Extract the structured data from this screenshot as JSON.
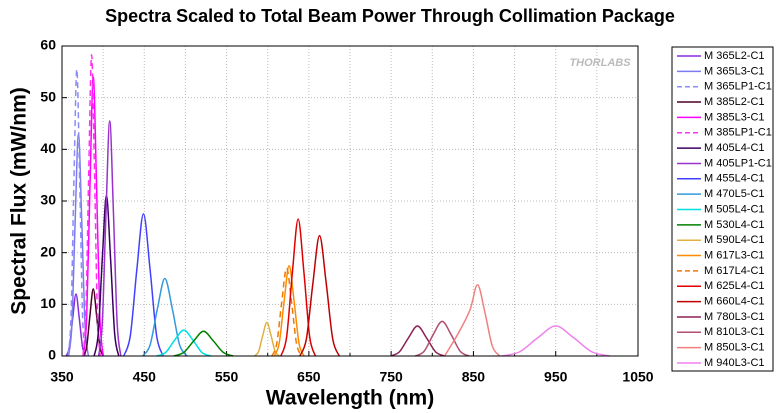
{
  "chart_data": {
    "type": "line",
    "title": "Spectra Scaled to Total Beam Power Through Collimation Package",
    "x_label": "Wavelength (nm)",
    "y_label": "Spectral Flux (mW/nm)",
    "watermark": "THORLABS",
    "xlim": [
      350,
      1050
    ],
    "xticks": [
      350,
      450,
      550,
      650,
      750,
      850,
      950,
      1050
    ],
    "xminor": [
      400,
      500,
      600,
      700,
      800,
      900,
      1000
    ],
    "ylim": [
      0,
      60
    ],
    "yticks": [
      0,
      10,
      20,
      30,
      40,
      50,
      60
    ],
    "grid": true,
    "legend": "right",
    "series": [
      {
        "name": "M 365L2-C1",
        "color": "#8a2be2",
        "dashed": false,
        "x": [
          355,
          359,
          363,
          367,
          371,
          375,
          379
        ],
        "values": [
          0,
          1.7,
          7.3,
          12,
          7.3,
          1.7,
          0
        ]
      },
      {
        "name": "M 365L3-C1",
        "color": "#7b7bf0",
        "dashed": false,
        "x": [
          358,
          362,
          366,
          370,
          374,
          378,
          382
        ],
        "values": [
          0,
          6,
          26.2,
          43,
          26.2,
          6,
          0
        ]
      },
      {
        "name": "M 365LP1-C1",
        "color": "#8c8cf5",
        "dashed": true,
        "x": [
          357.5,
          361,
          364.5,
          368,
          371.5,
          375,
          378.5
        ],
        "values": [
          0,
          7.8,
          33.9,
          55.5,
          33.9,
          7.8,
          0
        ]
      },
      {
        "name": "M 385L2-C1",
        "color": "#4b0026",
        "dashed": false,
        "x": [
          376,
          380,
          384,
          388,
          392,
          396,
          400
        ],
        "values": [
          0,
          1.8,
          7.9,
          13,
          7.9,
          1.8,
          0
        ]
      },
      {
        "name": "M 385L3-C1",
        "color": "#ff00ff",
        "dashed": false,
        "x": [
          376,
          380,
          384,
          388,
          392,
          396,
          400
        ],
        "values": [
          0,
          7.6,
          32.9,
          54,
          32.9,
          7.6,
          0
        ]
      },
      {
        "name": "M 385LP1-C1",
        "color": "#ff33ee",
        "dashed": true,
        "x": [
          375.5,
          379,
          382.5,
          386,
          389.5,
          393,
          396.5
        ],
        "values": [
          0,
          8.2,
          35.6,
          58.3,
          35.6,
          8.2,
          0
        ]
      },
      {
        "name": "M 405L4-C1",
        "color": "#3a0060",
        "dashed": false,
        "x": [
          389,
          394,
          399,
          404,
          409,
          414,
          419
        ],
        "values": [
          0,
          4.3,
          18.9,
          31,
          18.9,
          4.3,
          0
        ]
      },
      {
        "name": "M 405LP1-C1",
        "color": "#9932cc",
        "dashed": false,
        "x": [
          394.5,
          399,
          403.5,
          408,
          412.5,
          417,
          421.5
        ],
        "values": [
          0,
          6.4,
          27.8,
          45.5,
          27.8,
          6.4,
          0
        ]
      },
      {
        "name": "M 455L4-C1",
        "color": "#4040ff",
        "dashed": false,
        "x": [
          425,
          433,
          441,
          449,
          457,
          465,
          473
        ],
        "values": [
          0,
          3.9,
          16.8,
          27.5,
          16.8,
          3.9,
          0
        ]
      },
      {
        "name": "M 470L5-C1",
        "color": "#3399dd",
        "dashed": false,
        "x": [
          448,
          457,
          466,
          475,
          484,
          493,
          502
        ],
        "values": [
          0,
          2.1,
          9.2,
          15,
          9.2,
          2.1,
          0
        ]
      },
      {
        "name": "M 505L4-C1",
        "color": "#00e0e0",
        "dashed": false,
        "x": [
          465,
          476,
          487,
          498,
          509,
          520,
          531
        ],
        "values": [
          0,
          0.7,
          3.1,
          5,
          3.1,
          0.7,
          0
        ]
      },
      {
        "name": "M 530L4-C1",
        "color": "#008000",
        "dashed": false,
        "x": [
          486,
          498,
          510,
          522,
          534,
          546,
          558
        ],
        "values": [
          0,
          0.7,
          2.9,
          4.8,
          2.9,
          0.7,
          0
        ]
      },
      {
        "name": "M 590L4-C1",
        "color": "#e0b040",
        "dashed": false,
        "x": [
          584,
          589,
          594,
          599,
          604,
          609,
          614
        ],
        "values": [
          0,
          0.9,
          4,
          6.5,
          4,
          0.9,
          0
        ]
      },
      {
        "name": "M 617L3-C1",
        "color": "#ff8c00",
        "dashed": false,
        "x": [
          608,
          614,
          620,
          626,
          632,
          638,
          644
        ],
        "values": [
          0,
          2.5,
          10.7,
          17.5,
          10.7,
          2.5,
          0
        ]
      },
      {
        "name": "M 617L4-C1",
        "color": "#f07800",
        "dashed": true,
        "x": [
          605,
          611,
          617,
          623,
          629,
          635,
          641
        ],
        "values": [
          0,
          2.4,
          10.4,
          17,
          10.4,
          2.4,
          0
        ]
      },
      {
        "name": "M 625L4-C1",
        "color": "#e00000",
        "dashed": false,
        "x": [
          616,
          623,
          630,
          637,
          644,
          651,
          658
        ],
        "values": [
          0,
          3.7,
          16.2,
          26.5,
          16.2,
          3.7,
          0
        ]
      },
      {
        "name": "M 660L4-C1",
        "color": "#c00000",
        "dashed": false,
        "x": [
          639,
          647,
          655,
          663,
          671,
          679,
          687
        ],
        "values": [
          0,
          3.3,
          14.2,
          23.3,
          14.2,
          3.3,
          0
        ]
      },
      {
        "name": "M 780L3-C1",
        "color": "#8b2252",
        "dashed": false,
        "x": [
          749,
          760,
          771,
          782,
          793,
          804,
          815
        ],
        "values": [
          0,
          0.8,
          3.5,
          5.8,
          3.5,
          0.8,
          0
        ]
      },
      {
        "name": "M 810L3-C1",
        "color": "#b05070",
        "dashed": false,
        "x": [
          779,
          790,
          801,
          812,
          823,
          834,
          845
        ],
        "values": [
          0,
          0.9,
          4.1,
          6.7,
          4.1,
          0.9,
          0
        ]
      },
      {
        "name": "M 850L3-C1",
        "color": "#f08080",
        "dashed": false,
        "x": [
          815,
          832,
          846,
          855,
          864,
          873,
          882
        ],
        "values": [
          0,
          4.5,
          9,
          13.8,
          8.4,
          1.9,
          0
        ]
      },
      {
        "name": "M 940L3-C1",
        "color": "#f080f0",
        "dashed": false,
        "x": [
          884,
          906,
          928,
          950,
          972,
          994,
          1016
        ],
        "values": [
          0,
          0.8,
          3.5,
          5.8,
          3.5,
          0.8,
          0
        ]
      }
    ]
  }
}
